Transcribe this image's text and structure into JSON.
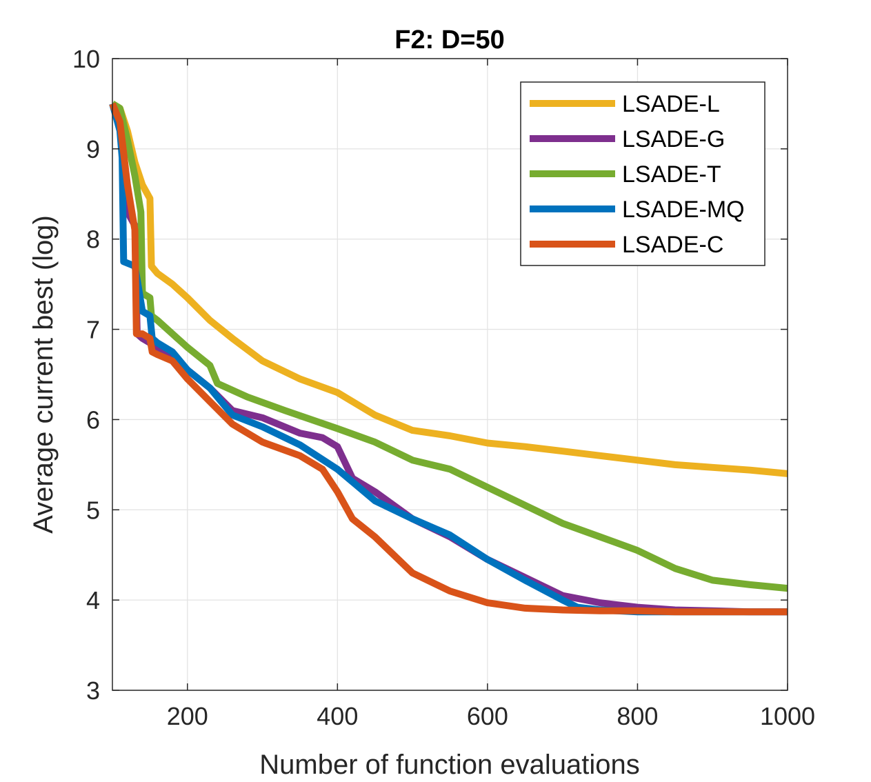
{
  "chart_data": {
    "type": "line",
    "title": "F2: D=50",
    "xlabel": "Number of function evaluations",
    "ylabel": "Average current best (log)",
    "xlim": [
      100,
      1000
    ],
    "ylim": [
      3,
      10
    ],
    "xticks": [
      200,
      400,
      600,
      800,
      1000
    ],
    "yticks": [
      3,
      4,
      5,
      6,
      7,
      8,
      9,
      10
    ],
    "xtick_labels": [
      "200",
      "400",
      "600",
      "800",
      "1000"
    ],
    "ytick_labels": [
      "3",
      "4",
      "5",
      "6",
      "7",
      "8",
      "9",
      "10"
    ],
    "grid": true,
    "legend_position": "top-right",
    "series": [
      {
        "name": "LSADE-L",
        "color": "#EDB120",
        "x": [
          100,
          110,
          120,
          130,
          140,
          150,
          152,
          160,
          180,
          200,
          230,
          260,
          300,
          350,
          400,
          450,
          500,
          550,
          600,
          650,
          700,
          750,
          800,
          850,
          900,
          950,
          1000
        ],
        "y": [
          9.5,
          9.45,
          9.2,
          8.85,
          8.6,
          8.45,
          7.7,
          7.62,
          7.5,
          7.35,
          7.1,
          6.9,
          6.65,
          6.45,
          6.3,
          6.05,
          5.88,
          5.82,
          5.74,
          5.7,
          5.65,
          5.6,
          5.55,
          5.5,
          5.47,
          5.44,
          5.4
        ]
      },
      {
        "name": "LSADE-G",
        "color": "#7E2F8E",
        "x": [
          100,
          110,
          115,
          120,
          130,
          133,
          140,
          150,
          180,
          200,
          230,
          260,
          300,
          350,
          380,
          400,
          420,
          450,
          500,
          550,
          600,
          650,
          700,
          750,
          800,
          850,
          900,
          950,
          1000
        ],
        "y": [
          9.5,
          9.4,
          8.7,
          8.3,
          8.15,
          6.95,
          6.9,
          6.85,
          6.7,
          6.55,
          6.35,
          6.1,
          6.02,
          5.85,
          5.8,
          5.7,
          5.35,
          5.2,
          4.9,
          4.7,
          4.45,
          4.25,
          4.05,
          3.97,
          3.92,
          3.89,
          3.88,
          3.87,
          3.87
        ]
      },
      {
        "name": "LSADE-T",
        "color": "#77AC30",
        "x": [
          100,
          110,
          120,
          130,
          138,
          140,
          150,
          152,
          160,
          180,
          200,
          230,
          240,
          280,
          330,
          400,
          450,
          500,
          550,
          600,
          650,
          700,
          750,
          800,
          850,
          900,
          950,
          1000
        ],
        "y": [
          9.5,
          9.45,
          9.1,
          8.7,
          8.3,
          7.4,
          7.35,
          7.15,
          7.1,
          6.95,
          6.8,
          6.6,
          6.4,
          6.25,
          6.1,
          5.9,
          5.75,
          5.55,
          5.45,
          5.25,
          5.05,
          4.85,
          4.7,
          4.55,
          4.35,
          4.22,
          4.17,
          4.13
        ]
      },
      {
        "name": "LSADE-MQ",
        "color": "#0072BD",
        "x": [
          100,
          110,
          113,
          115,
          130,
          133,
          140,
          150,
          153,
          160,
          180,
          200,
          230,
          260,
          300,
          350,
          400,
          450,
          500,
          550,
          600,
          650,
          700,
          720,
          750,
          800,
          850,
          900,
          950,
          1000
        ],
        "y": [
          9.5,
          9.2,
          8.9,
          7.75,
          7.7,
          7.55,
          7.2,
          7.15,
          6.9,
          6.85,
          6.75,
          6.55,
          6.35,
          6.05,
          5.92,
          5.72,
          5.45,
          5.1,
          4.9,
          4.72,
          4.45,
          4.22,
          4.0,
          3.92,
          3.89,
          3.87,
          3.87,
          3.87,
          3.87,
          3.87
        ]
      },
      {
        "name": "LSADE-C",
        "color": "#D95319",
        "x": [
          100,
          110,
          120,
          130,
          132,
          140,
          150,
          153,
          160,
          180,
          200,
          230,
          260,
          300,
          350,
          380,
          400,
          420,
          450,
          500,
          550,
          600,
          650,
          700,
          750,
          800,
          850,
          900,
          950,
          1000
        ],
        "y": [
          9.5,
          9.3,
          8.6,
          8.1,
          6.95,
          6.95,
          6.9,
          6.75,
          6.72,
          6.65,
          6.45,
          6.2,
          5.95,
          5.75,
          5.6,
          5.45,
          5.2,
          4.9,
          4.7,
          4.3,
          4.1,
          3.97,
          3.91,
          3.89,
          3.88,
          3.88,
          3.87,
          3.87,
          3.87,
          3.87
        ]
      }
    ]
  }
}
